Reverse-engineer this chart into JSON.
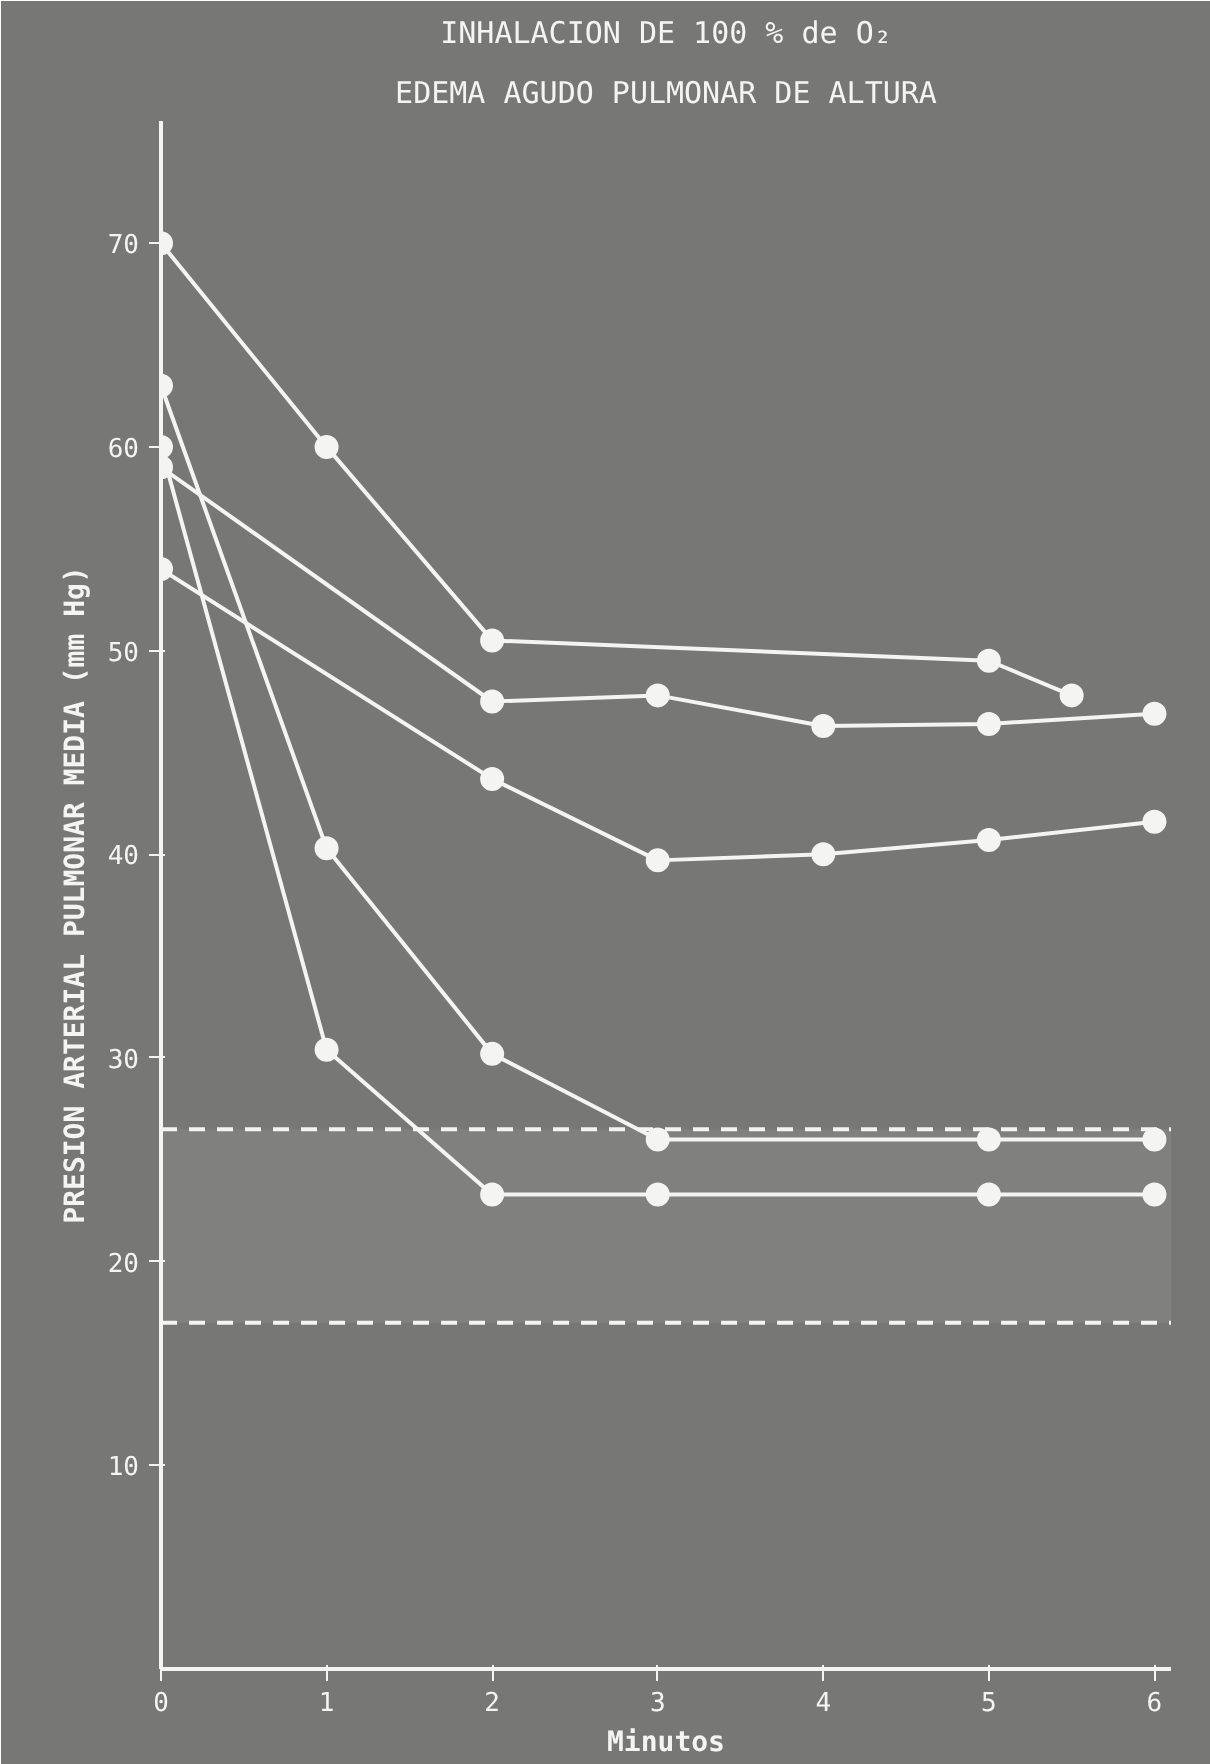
{
  "chart_data": {
    "type": "line",
    "title": "INHALACION DE 100 % de O₂",
    "subtitle": "EDEMA AGUDO PULMONAR DE ALTURA",
    "xlabel": "Minutos",
    "ylabel": "PRESION ARTERIAL PULMONAR MEDIA (mm Hg)",
    "xlim": [
      0,
      6.1
    ],
    "ylim": [
      0,
      76
    ],
    "xticks": [
      0,
      1,
      2,
      3,
      4,
      5,
      6
    ],
    "yticks": [
      10,
      20,
      30,
      40,
      50,
      60,
      70
    ],
    "grid": false,
    "marker": "circle",
    "line_style": "solid",
    "series": [
      {
        "color": "#f4f4f2",
        "x": [
          0,
          1,
          2,
          5,
          5.5
        ],
        "values": [
          70,
          60,
          50.5,
          49.5,
          47.8
        ]
      },
      {
        "color": "#f4f4f2",
        "x": [
          0,
          2,
          3,
          4,
          5,
          6
        ],
        "values": [
          59,
          47.5,
          47.8,
          46.3,
          46.4,
          46.9
        ]
      },
      {
        "color": "#f4f4f2",
        "x": [
          0,
          2,
          3,
          4,
          5,
          6
        ],
        "values": [
          54,
          43.7,
          39.7,
          40,
          40.7,
          41.6
        ]
      },
      {
        "color": "#f4f4f2",
        "x": [
          0,
          1,
          2,
          3,
          5,
          6
        ],
        "values": [
          63,
          40.3,
          30.2,
          26,
          26,
          26
        ]
      },
      {
        "color": "#f4f4f2",
        "x": [
          0,
          1,
          2,
          3,
          5,
          6
        ],
        "values": [
          60,
          30.4,
          23.3,
          23.3,
          23.3,
          23.3
        ]
      }
    ],
    "ref_lines": [
      {
        "axis": "y",
        "value": 26.5,
        "color": "#f4f4f2",
        "line_style": "dashed"
      },
      {
        "axis": "y",
        "value": 17,
        "color": "#f4f4f2",
        "line_style": "dashed"
      }
    ],
    "bands": [
      {
        "axis": "y",
        "from": 17,
        "to": 26.5,
        "color": "#8a8a88"
      }
    ]
  }
}
